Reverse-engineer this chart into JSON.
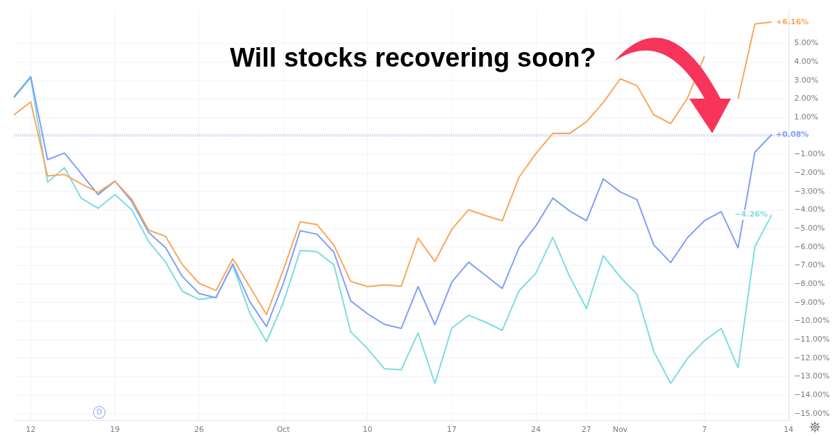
{
  "chart_data": {
    "type": "line",
    "title": "Will stocks recovering soon?",
    "categories": [
      null,
      "12",
      null,
      null,
      null,
      null,
      "19",
      null,
      null,
      null,
      null,
      "26",
      null,
      null,
      null,
      null,
      "Oct",
      null,
      null,
      null,
      null,
      "10",
      null,
      null,
      null,
      null,
      "17",
      null,
      null,
      null,
      null,
      "24",
      null,
      null,
      "27",
      null,
      "Nov",
      null,
      null,
      null,
      null,
      "7",
      null,
      null,
      null,
      null,
      "14"
    ],
    "series": [
      {
        "color": "#f9a65a",
        "values": [
          1.14,
          1.84,
          -2.16,
          -2.08,
          -2.59,
          -3.05,
          -2.44,
          -3.42,
          -5.09,
          -5.42,
          -6.95,
          -7.96,
          -8.35,
          -6.64,
          -8.14,
          -9.65,
          -7.23,
          -4.64,
          -4.79,
          -5.89,
          -7.86,
          -8.14,
          -8.05,
          -8.12,
          -5.52,
          -6.78,
          -5.05,
          -3.99,
          -4.3,
          -4.58,
          -2.22,
          -0.95,
          0.14,
          0.14,
          0.77,
          1.81,
          3.09,
          2.72,
          1.14,
          0.67,
          2.05,
          4.3,
          null,
          2.0,
          6.05,
          6.16,
          null
        ],
        "value_labels": [
          null,
          null,
          null,
          null,
          null,
          null,
          null,
          null,
          null,
          null,
          null,
          null,
          null,
          null,
          null,
          null,
          null,
          null,
          null,
          null,
          null,
          null,
          null,
          null,
          null,
          null,
          null,
          null,
          null,
          null,
          null,
          null,
          null,
          null,
          null,
          null,
          null,
          null,
          null,
          null,
          null,
          null,
          null,
          null,
          null,
          "+6.16%",
          null
        ]
      },
      {
        "color": "#7f9ff5",
        "values": [
          2.11,
          3.21,
          -1.28,
          -0.92,
          -2.04,
          -3.17,
          -2.44,
          -3.54,
          -5.21,
          -6.03,
          -7.59,
          -8.51,
          -8.75,
          -6.92,
          -8.94,
          -10.3,
          -7.96,
          -5.12,
          -5.31,
          -6.28,
          -8.91,
          -9.61,
          -10.18,
          -10.4,
          -8.14,
          -10.2,
          -7.9,
          -6.82,
          -7.53,
          -8.24,
          -6.03,
          -4.85,
          -3.36,
          -4.05,
          -4.58,
          -2.32,
          -3.02,
          -3.44,
          -5.89,
          -6.84,
          -5.49,
          -4.58,
          -4.09,
          -6.04,
          -0.88,
          0.08,
          null
        ],
        "value_labels": [
          null,
          null,
          null,
          null,
          null,
          null,
          null,
          null,
          null,
          null,
          null,
          null,
          null,
          null,
          null,
          null,
          null,
          null,
          null,
          null,
          null,
          null,
          null,
          null,
          null,
          null,
          null,
          null,
          null,
          null,
          null,
          null,
          null,
          null,
          null,
          null,
          null,
          null,
          null,
          null,
          null,
          null,
          null,
          null,
          null,
          "+0.08%",
          null
        ]
      },
      {
        "color": "#7ddbe3",
        "values": [
          2.05,
          3.15,
          -2.5,
          -1.71,
          -3.36,
          -3.91,
          -3.17,
          -3.99,
          -5.7,
          -6.8,
          -8.39,
          -8.84,
          -8.7,
          -6.98,
          -9.55,
          -11.11,
          -9.0,
          -6.19,
          -6.25,
          -6.96,
          -10.59,
          -11.5,
          -12.58,
          -12.63,
          -10.65,
          -13.37,
          -10.38,
          -9.69,
          -10.06,
          -10.5,
          -8.36,
          -7.41,
          -5.48,
          -7.59,
          -9.33,
          -6.47,
          -7.62,
          -8.55,
          -11.65,
          -13.37,
          -12.01,
          -11.07,
          -10.4,
          -12.52,
          -5.98,
          -4.26,
          null
        ],
        "value_labels": [
          null,
          null,
          null,
          null,
          null,
          null,
          null,
          null,
          null,
          null,
          null,
          null,
          null,
          null,
          null,
          null,
          null,
          null,
          null,
          null,
          null,
          null,
          null,
          null,
          null,
          null,
          null,
          null,
          null,
          null,
          null,
          null,
          null,
          null,
          null,
          null,
          null,
          null,
          null,
          null,
          null,
          null,
          null,
          null,
          null,
          "−4.26%",
          null
        ]
      }
    ],
    "ylim": [
      -15.35,
      6.8
    ],
    "yticks": [
      {
        "value": -15,
        "label": "−15.00%"
      },
      {
        "value": -14,
        "label": "−14.00%"
      },
      {
        "value": -13,
        "label": "−13.00%"
      },
      {
        "value": -12,
        "label": "−12.00%"
      },
      {
        "value": -11,
        "label": "−11.00%"
      },
      {
        "value": -10,
        "label": "−10.00%"
      },
      {
        "value": -9,
        "label": "−9.00%"
      },
      {
        "value": -8,
        "label": "−8.00%"
      },
      {
        "value": -7,
        "label": "−7.00%"
      },
      {
        "value": -6,
        "label": "−6.00%"
      },
      {
        "value": -5,
        "label": "−5.00%"
      },
      {
        "value": -4,
        "label": "−4.00%"
      },
      {
        "value": -3,
        "label": "−3.00%"
      },
      {
        "value": -2,
        "label": "−2.00%"
      },
      {
        "value": -1,
        "label": "−1.00%"
      },
      {
        "value": 1,
        "label": "1.00%"
      },
      {
        "value": 2,
        "label": "2.00%"
      },
      {
        "value": 3,
        "label": "3.00%"
      },
      {
        "value": 4,
        "label": "4.00%"
      },
      {
        "value": 5,
        "label": "5.00%"
      }
    ],
    "grid": true,
    "legend": false,
    "marker": "none",
    "ref_lines": [
      {
        "axis": "y",
        "value": 0,
        "color": "#d1d4dc",
        "line_style": "solid"
      },
      {
        "axis": "y",
        "value": 0.08,
        "color": "#7f9ff5",
        "line_style": "dotted"
      }
    ],
    "annotations": [
      "D"
    ]
  }
}
